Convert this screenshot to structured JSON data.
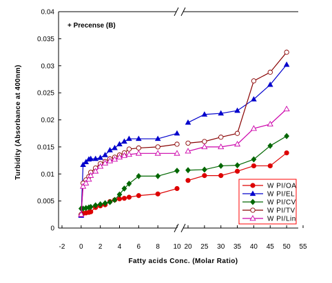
{
  "chart_data": {
    "type": "line",
    "title": "",
    "annotation": "+ Precense (B)",
    "xlabel": "Fatty acids Conc. (Molar Ratio)",
    "ylabel": "Turbidity (Absorbance at 400nm)",
    "ylim": [
      0,
      0.04
    ],
    "yticks": [
      "0",
      "0.005",
      "0.01",
      "0.015",
      "0.02",
      "0.025",
      "0.03",
      "0.035",
      "0.04"
    ],
    "x_axis_break": true,
    "x_segments": [
      {
        "range": [
          -2,
          10
        ],
        "ticks": [
          "-2",
          "0",
          "2",
          "4",
          "6",
          "8",
          "10"
        ]
      },
      {
        "range": [
          20,
          55
        ],
        "ticks": [
          "20",
          "25",
          "30",
          "35",
          "40",
          "45",
          "50",
          "55"
        ]
      }
    ],
    "grid": false,
    "legend_position": "bottom-right",
    "series": [
      {
        "name": "W PI/OA",
        "color": "#dd0000",
        "marker": "circle-filled",
        "x": [
          0,
          0.2,
          0.5,
          0.8,
          1,
          1.5,
          2,
          2.5,
          3,
          3.5,
          4,
          4.5,
          5,
          6,
          8,
          10,
          20,
          25,
          30,
          35,
          40,
          45,
          50
        ],
        "y": [
          0.0025,
          0.0027,
          0.0028,
          0.0029,
          0.003,
          0.0038,
          0.0041,
          0.0043,
          0.0049,
          0.0052,
          0.0054,
          0.0055,
          0.0057,
          0.006,
          0.0063,
          0.0073,
          0.0088,
          0.0097,
          0.0097,
          0.0105,
          0.0115,
          0.0115,
          0.0139
        ]
      },
      {
        "name": "W PI/EL",
        "color": "#0000cc",
        "marker": "triangle-filled",
        "x": [
          0,
          0.2,
          0.5,
          0.8,
          1,
          1.5,
          2,
          2.5,
          3,
          3.5,
          4,
          4.5,
          5,
          6,
          8,
          10,
          20,
          25,
          30,
          35,
          40,
          45,
          50
        ],
        "y": [
          0.0023,
          0.0117,
          0.0122,
          0.0127,
          0.0128,
          0.0128,
          0.013,
          0.0135,
          0.0144,
          0.0148,
          0.0155,
          0.016,
          0.0165,
          0.0165,
          0.0165,
          0.0175,
          0.0195,
          0.021,
          0.0212,
          0.0217,
          0.0238,
          0.0265,
          0.0302
        ]
      },
      {
        "name": "W PI/CV",
        "color": "#006600",
        "marker": "diamond-filled",
        "x": [
          0,
          0.2,
          0.5,
          0.8,
          1,
          1.5,
          2,
          2.5,
          3,
          3.5,
          4,
          4.5,
          5,
          6,
          8,
          10,
          20,
          25,
          30,
          35,
          40,
          45,
          50
        ],
        "y": [
          0.0036,
          0.0036,
          0.0037,
          0.0038,
          0.0039,
          0.0042,
          0.0044,
          0.0046,
          0.0048,
          0.0052,
          0.0062,
          0.0073,
          0.0082,
          0.0096,
          0.0096,
          0.0106,
          0.0107,
          0.0108,
          0.0115,
          0.0116,
          0.0127,
          0.0152,
          0.017
        ]
      },
      {
        "name": "W PI/TV",
        "color": "#880000",
        "marker": "circle-open",
        "x": [
          0,
          0.2,
          0.5,
          0.8,
          1,
          1.5,
          2,
          2.5,
          3,
          3.5,
          4,
          4.5,
          5,
          6,
          8,
          10,
          20,
          25,
          30,
          35,
          40,
          45,
          50
        ],
        "y": [
          0.0025,
          0.0083,
          0.0089,
          0.0095,
          0.0103,
          0.0111,
          0.0119,
          0.0123,
          0.0128,
          0.0131,
          0.0135,
          0.0139,
          0.0146,
          0.0148,
          0.015,
          0.0155,
          0.0157,
          0.016,
          0.0168,
          0.0175,
          0.0272,
          0.0288,
          0.0325
        ]
      },
      {
        "name": "W PI/Lin",
        "color": "#cc00aa",
        "marker": "triangle-open",
        "x": [
          0,
          0.2,
          0.5,
          0.8,
          1,
          1.5,
          2,
          2.5,
          3,
          3.5,
          4,
          4.5,
          5,
          6,
          8,
          10,
          20,
          25,
          30,
          35,
          40,
          45,
          50
        ],
        "y": [
          0.0025,
          0.0077,
          0.0083,
          0.009,
          0.0097,
          0.0105,
          0.0114,
          0.012,
          0.0124,
          0.0127,
          0.0131,
          0.0134,
          0.0136,
          0.0138,
          0.0138,
          0.0138,
          0.0142,
          0.015,
          0.015,
          0.0155,
          0.0184,
          0.0192,
          0.022
        ]
      }
    ]
  }
}
